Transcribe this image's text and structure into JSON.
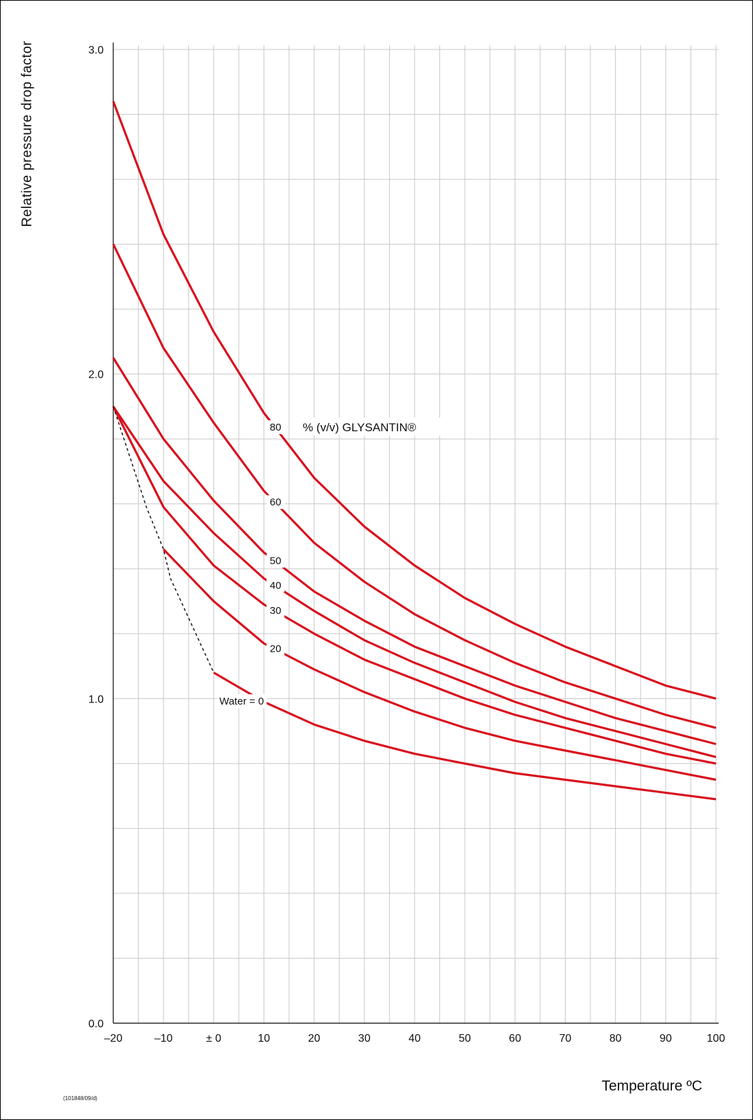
{
  "chart_data": {
    "type": "line",
    "title": "",
    "xlabel": "Temperature ºC",
    "ylabel": "Relative pressure drop factor",
    "xlim": [
      -20,
      100
    ],
    "ylim": [
      0,
      3.0
    ],
    "x_ticks": [
      -20,
      -10,
      0,
      10,
      20,
      30,
      40,
      50,
      60,
      70,
      80,
      90,
      100
    ],
    "x_tick_labels": [
      "–20",
      "–10",
      "± 0",
      "10",
      "20",
      "30",
      "40",
      "50",
      "60",
      "70",
      "80",
      "90",
      "100"
    ],
    "y_ticks": [
      0,
      1,
      2,
      3
    ],
    "y_tick_labels": [
      "0.0",
      "1.0",
      "2.0",
      "3.0"
    ],
    "grid": true,
    "legend_text": "% (v/v) GLYSANTIN®",
    "series": [
      {
        "name": "80",
        "x": [
          -20,
          -10,
          0,
          10,
          20,
          30,
          40,
          50,
          60,
          70,
          80,
          90,
          100
        ],
        "y": [
          2.84,
          2.43,
          2.13,
          1.88,
          1.68,
          1.53,
          1.41,
          1.31,
          1.23,
          1.16,
          1.1,
          1.04,
          1.0
        ]
      },
      {
        "name": "60",
        "x": [
          -20,
          -10,
          0,
          10,
          20,
          30,
          40,
          50,
          60,
          70,
          80,
          90,
          100
        ],
        "y": [
          2.4,
          2.08,
          1.85,
          1.64,
          1.48,
          1.36,
          1.26,
          1.18,
          1.11,
          1.05,
          1.0,
          0.95,
          0.91
        ]
      },
      {
        "name": "50",
        "x": [
          -20,
          -10,
          0,
          10,
          20,
          30,
          40,
          50,
          60,
          70,
          80,
          90,
          100
        ],
        "y": [
          2.05,
          1.8,
          1.61,
          1.45,
          1.33,
          1.24,
          1.16,
          1.1,
          1.04,
          0.99,
          0.94,
          0.9,
          0.86
        ]
      },
      {
        "name": "40",
        "x": [
          -20,
          -10,
          0,
          10,
          20,
          30,
          40,
          50,
          60,
          70,
          80,
          90,
          100
        ],
        "y": [
          1.9,
          1.67,
          1.51,
          1.37,
          1.27,
          1.18,
          1.11,
          1.05,
          0.99,
          0.94,
          0.9,
          0.86,
          0.82
        ]
      },
      {
        "name": "30",
        "x": [
          -20,
          -10,
          0,
          10,
          20,
          30,
          40,
          50,
          60,
          70,
          80,
          90,
          100
        ],
        "y": [
          1.9,
          1.59,
          1.41,
          1.29,
          1.2,
          1.12,
          1.06,
          1.0,
          0.95,
          0.91,
          0.87,
          0.83,
          0.8
        ]
      },
      {
        "name": "20",
        "x": [
          -10,
          0,
          10,
          20,
          30,
          40,
          50,
          60,
          70,
          80,
          90,
          100
        ],
        "y": [
          1.46,
          1.3,
          1.17,
          1.09,
          1.02,
          0.96,
          0.91,
          0.87,
          0.84,
          0.81,
          0.78,
          0.75
        ]
      },
      {
        "name": "Water = 0",
        "x": [
          0,
          10,
          20,
          30,
          40,
          50,
          60,
          70,
          80,
          90,
          100
        ],
        "y": [
          1.08,
          0.99,
          0.92,
          0.87,
          0.83,
          0.8,
          0.77,
          0.75,
          0.73,
          0.71,
          0.69
        ]
      }
    ],
    "freeze_limit": {
      "style": "dashed",
      "x": [
        -20,
        -13.4,
        -10,
        -8.6,
        0
      ],
      "y": [
        1.9,
        1.59,
        1.46,
        1.37,
        1.08
      ]
    }
  },
  "footer": {
    "code": "(101848/09/d)"
  },
  "colors": {
    "curve": "#d9101d",
    "grid": "#c8c8c8",
    "axis": "#000000"
  }
}
